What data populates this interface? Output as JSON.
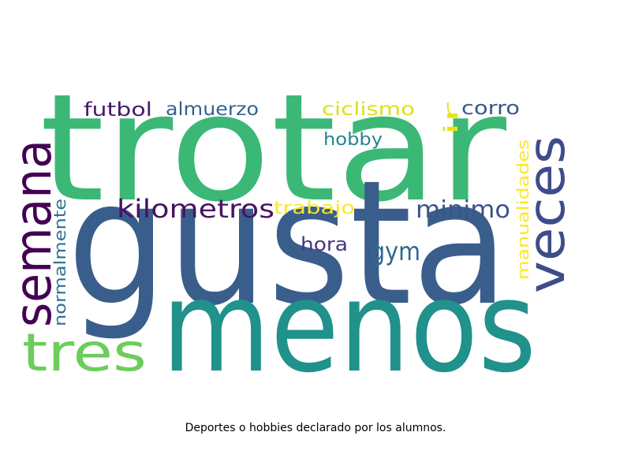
{
  "caption": "Deportes o hobbies declarado por los alumnos.",
  "words": [
    {
      "text": "trotar",
      "color": "#3bb876"
    },
    {
      "text": "gusta",
      "color": "#3a5e8c"
    },
    {
      "text": "menos",
      "color": "#21918c"
    },
    {
      "text": "semana",
      "color": "#440154"
    },
    {
      "text": "veces",
      "color": "#3e4c8a"
    },
    {
      "text": "tres",
      "color": "#6ccd5a"
    },
    {
      "text": "kilometros",
      "color": "#471365"
    },
    {
      "text": "minimo",
      "color": "#3b528b"
    },
    {
      "text": "gym",
      "color": "#31688e"
    },
    {
      "text": "hora",
      "color": "#453781"
    },
    {
      "text": "trabajo",
      "color": "#fde725"
    },
    {
      "text": "normalmente",
      "color": "#2c728e"
    },
    {
      "text": "manualidades",
      "color": "#fde725"
    },
    {
      "text": "futbol",
      "color": "#481a6c"
    },
    {
      "text": "almuerzo",
      "color": "#33638d"
    },
    {
      "text": "ciclismo",
      "color": "#d8e219"
    },
    {
      "text": "ir",
      "color": "#e5e419"
    },
    {
      "text": "corro",
      "color": "#38598c"
    },
    {
      "text": "hobby",
      "color": "#25858e"
    }
  ]
}
